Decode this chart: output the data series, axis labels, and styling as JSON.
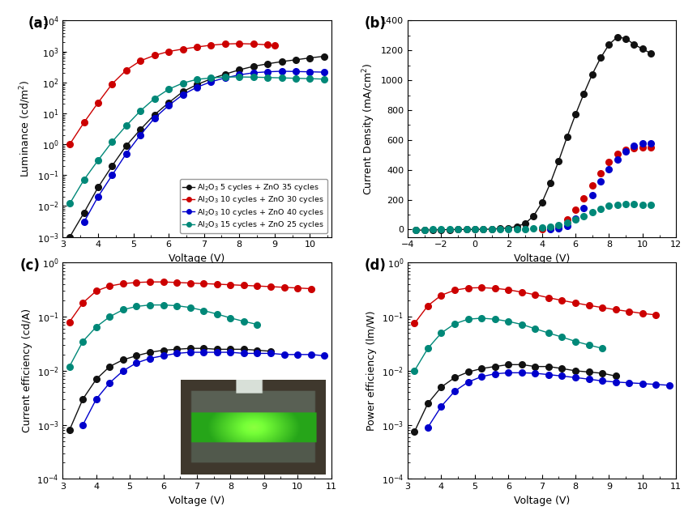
{
  "colors": {
    "black": "#111111",
    "red": "#cc0000",
    "blue": "#0000cc",
    "teal": "#008878"
  },
  "legend_labels": [
    "Al$_2$O$_3$ 5 cycles + ZnO 35 cycles",
    "Al$_2$O$_3$ 10 cycles + ZnO 30 cycles",
    "Al$_2$O$_3$ 10 cycles + ZnO 40 cycles",
    "Al$_2$O$_3$ 15 cycles + ZnO 25 cycles"
  ],
  "panel_labels": [
    "(a)",
    "(b)",
    "(c)",
    "(d)"
  ],
  "subplot_a": {
    "xlabel": "Voltage (V)",
    "ylabel": "Luminance (cd/m$^2$)",
    "xlim": [
      3.0,
      10.6
    ],
    "ylim_log": [
      -3,
      4
    ],
    "black_x": [
      3.2,
      3.6,
      4.0,
      4.4,
      4.8,
      5.2,
      5.6,
      6.0,
      6.4,
      6.8,
      7.2,
      7.6,
      8.0,
      8.4,
      8.8,
      9.2,
      9.6,
      10.0,
      10.4
    ],
    "black_y": [
      0.001,
      0.006,
      0.04,
      0.2,
      0.9,
      3.0,
      9,
      22,
      50,
      85,
      130,
      185,
      255,
      330,
      400,
      470,
      540,
      620,
      700
    ],
    "red_x": [
      3.2,
      3.6,
      4.0,
      4.4,
      4.8,
      5.2,
      5.6,
      6.0,
      6.4,
      6.8,
      7.2,
      7.6,
      8.0,
      8.4,
      8.8,
      9.0
    ],
    "red_y": [
      1.0,
      5.0,
      22,
      90,
      250,
      500,
      750,
      1000,
      1200,
      1400,
      1600,
      1750,
      1800,
      1750,
      1650,
      1550
    ],
    "blue_x": [
      3.6,
      4.0,
      4.4,
      4.8,
      5.2,
      5.6,
      6.0,
      6.4,
      6.8,
      7.2,
      7.6,
      8.0,
      8.4,
      8.8,
      9.2,
      9.6,
      10.0,
      10.4
    ],
    "blue_y": [
      0.003,
      0.02,
      0.1,
      0.5,
      2.0,
      7,
      18,
      40,
      70,
      105,
      140,
      175,
      205,
      220,
      230,
      225,
      220,
      215
    ],
    "teal_x": [
      3.2,
      3.6,
      4.0,
      4.4,
      4.8,
      5.2,
      5.6,
      6.0,
      6.4,
      6.8,
      7.2,
      7.6,
      8.0,
      8.4,
      8.8,
      9.2,
      9.6,
      10.0,
      10.4
    ],
    "teal_y": [
      0.012,
      0.07,
      0.3,
      1.2,
      4.0,
      12,
      30,
      60,
      95,
      125,
      140,
      150,
      150,
      148,
      144,
      140,
      136,
      132,
      128
    ]
  },
  "subplot_b": {
    "xlabel": "Voltage (V)",
    "ylabel": "Current Density (mA/cm$^2$)",
    "xlim": [
      -4,
      12
    ],
    "ylim": [
      -50,
      1400
    ],
    "yticks": [
      0,
      200,
      400,
      600,
      800,
      1000,
      1200,
      1400
    ],
    "black_x": [
      -3.5,
      -3.0,
      -2.5,
      -2.0,
      -1.5,
      -1.0,
      -0.5,
      0.0,
      0.5,
      1.0,
      1.5,
      2.0,
      2.5,
      3.0,
      3.5,
      4.0,
      4.5,
      5.0,
      5.5,
      6.0,
      6.5,
      7.0,
      7.5,
      8.0,
      8.5,
      9.0,
      9.5,
      10.0,
      10.5
    ],
    "black_y": [
      -5,
      -4,
      -3,
      -2,
      -1,
      -0.5,
      0,
      0,
      1,
      2,
      5,
      10,
      20,
      40,
      90,
      180,
      310,
      460,
      620,
      770,
      910,
      1040,
      1150,
      1240,
      1290,
      1280,
      1240,
      1210,
      1180
    ],
    "red_x": [
      4.0,
      4.5,
      5.0,
      5.5,
      6.0,
      6.5,
      7.0,
      7.5,
      8.0,
      8.5,
      9.0,
      9.5,
      10.0,
      10.5
    ],
    "red_y": [
      2,
      8,
      25,
      65,
      130,
      210,
      295,
      375,
      450,
      505,
      535,
      545,
      548,
      548
    ],
    "blue_x": [
      4.5,
      5.0,
      5.5,
      6.0,
      6.5,
      7.0,
      7.5,
      8.0,
      8.5,
      9.0,
      9.5,
      10.0,
      10.5
    ],
    "blue_y": [
      2,
      8,
      25,
      70,
      145,
      230,
      320,
      405,
      470,
      525,
      560,
      575,
      580
    ],
    "teal_x": [
      -3.5,
      -3.0,
      -2.5,
      -2.0,
      -1.5,
      -1.0,
      -0.5,
      0.0,
      0.5,
      1.0,
      1.5,
      2.0,
      2.5,
      3.0,
      3.5,
      4.0,
      4.5,
      5.0,
      5.5,
      6.0,
      6.5,
      7.0,
      7.5,
      8.0,
      8.5,
      9.0,
      9.5,
      10.0,
      10.5
    ],
    "teal_y": [
      -1,
      -1,
      -0.8,
      -0.5,
      -0.3,
      -0.2,
      -0.1,
      0,
      0,
      0.2,
      0.5,
      1,
      2,
      4,
      7,
      12,
      20,
      30,
      45,
      65,
      90,
      115,
      140,
      158,
      165,
      168,
      168,
      167,
      165
    ]
  },
  "subplot_c": {
    "xlabel": "Voltage (V)",
    "ylabel": "Current efficiency (cd/A)",
    "xlim": [
      3,
      11
    ],
    "ylim_log": [
      -4,
      0
    ],
    "black_x": [
      3.2,
      3.6,
      4.0,
      4.4,
      4.8,
      5.2,
      5.6,
      6.0,
      6.4,
      6.8,
      7.2,
      7.6,
      8.0,
      8.4,
      8.8,
      9.2
    ],
    "black_y": [
      0.0008,
      0.003,
      0.007,
      0.012,
      0.016,
      0.019,
      0.022,
      0.024,
      0.025,
      0.026,
      0.026,
      0.025,
      0.025,
      0.025,
      0.024,
      0.023
    ],
    "red_x": [
      3.2,
      3.6,
      4.0,
      4.4,
      4.8,
      5.2,
      5.6,
      6.0,
      6.4,
      6.8,
      7.2,
      7.6,
      8.0,
      8.4,
      8.8,
      9.2,
      9.6,
      10.0,
      10.4
    ],
    "red_y": [
      0.08,
      0.18,
      0.3,
      0.37,
      0.41,
      0.43,
      0.44,
      0.44,
      0.43,
      0.42,
      0.41,
      0.4,
      0.39,
      0.38,
      0.37,
      0.36,
      0.35,
      0.34,
      0.33
    ],
    "blue_x": [
      3.6,
      4.0,
      4.4,
      4.8,
      5.2,
      5.6,
      6.0,
      6.4,
      6.8,
      7.2,
      7.6,
      8.0,
      8.4,
      8.8,
      9.2,
      9.6,
      10.0,
      10.4,
      10.8
    ],
    "blue_y": [
      0.001,
      0.003,
      0.006,
      0.01,
      0.014,
      0.017,
      0.019,
      0.021,
      0.022,
      0.022,
      0.022,
      0.022,
      0.021,
      0.021,
      0.021,
      0.02,
      0.02,
      0.02,
      0.019
    ],
    "teal_x": [
      3.2,
      3.6,
      4.0,
      4.4,
      4.8,
      5.2,
      5.6,
      6.0,
      6.4,
      6.8,
      7.2,
      7.6,
      8.0,
      8.4,
      8.8
    ],
    "teal_y": [
      0.012,
      0.035,
      0.065,
      0.1,
      0.135,
      0.155,
      0.165,
      0.165,
      0.16,
      0.148,
      0.13,
      0.112,
      0.095,
      0.082,
      0.072
    ]
  },
  "subplot_d": {
    "xlabel": "Voltage (V)",
    "ylabel": "Power efficiency (lm/W)",
    "xlim": [
      3,
      11
    ],
    "ylim_log": [
      -4,
      0
    ],
    "black_x": [
      3.2,
      3.6,
      4.0,
      4.4,
      4.8,
      5.2,
      5.6,
      6.0,
      6.4,
      6.8,
      7.2,
      7.6,
      8.0,
      8.4,
      8.8,
      9.2
    ],
    "black_y": [
      0.00075,
      0.0025,
      0.005,
      0.0075,
      0.0095,
      0.011,
      0.012,
      0.013,
      0.013,
      0.012,
      0.012,
      0.011,
      0.01,
      0.0095,
      0.009,
      0.008
    ],
    "red_x": [
      3.2,
      3.6,
      4.0,
      4.4,
      4.8,
      5.2,
      5.6,
      6.0,
      6.4,
      6.8,
      7.2,
      7.6,
      8.0,
      8.4,
      8.8,
      9.2,
      9.6,
      10.0,
      10.4
    ],
    "red_y": [
      0.075,
      0.16,
      0.25,
      0.31,
      0.34,
      0.345,
      0.335,
      0.315,
      0.285,
      0.255,
      0.225,
      0.2,
      0.18,
      0.162,
      0.148,
      0.135,
      0.125,
      0.115,
      0.108
    ],
    "blue_x": [
      3.6,
      4.0,
      4.4,
      4.8,
      5.2,
      5.6,
      6.0,
      6.4,
      6.8,
      7.2,
      7.6,
      8.0,
      8.4,
      8.8,
      9.2,
      9.6,
      10.0,
      10.4,
      10.8
    ],
    "blue_y": [
      0.0009,
      0.0022,
      0.0042,
      0.0062,
      0.0078,
      0.0088,
      0.0092,
      0.0092,
      0.009,
      0.0085,
      0.008,
      0.0075,
      0.007,
      0.0065,
      0.0062,
      0.006,
      0.0058,
      0.0056,
      0.0054
    ],
    "teal_x": [
      3.2,
      3.6,
      4.0,
      4.4,
      4.8,
      5.2,
      5.6,
      6.0,
      6.4,
      6.8,
      7.2,
      7.6,
      8.0,
      8.4,
      8.8
    ],
    "teal_y": [
      0.01,
      0.026,
      0.05,
      0.074,
      0.09,
      0.094,
      0.09,
      0.082,
      0.072,
      0.06,
      0.05,
      0.042,
      0.035,
      0.03,
      0.026
    ]
  }
}
